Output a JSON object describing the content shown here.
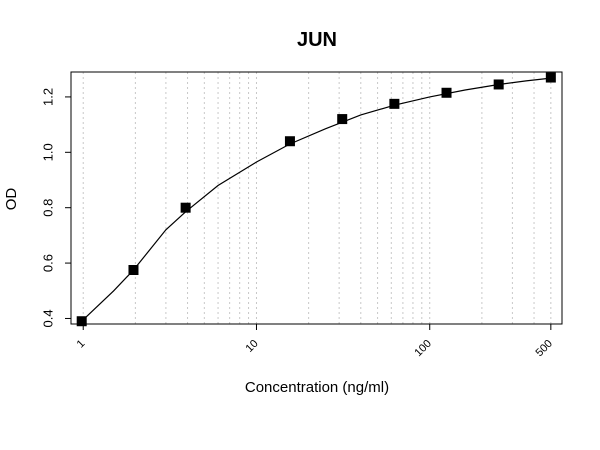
{
  "chart_data": {
    "type": "scatter",
    "title": "JUN",
    "xlabel": "Concentration (ng/ml)",
    "ylabel": "OD",
    "x_scale": "log",
    "xlim": [
      0.85,
      580
    ],
    "ylim": [
      0.38,
      1.29
    ],
    "x_ticks": [
      1,
      10,
      100,
      500
    ],
    "x_tick_labels": [
      "1",
      "10",
      "100",
      "500"
    ],
    "y_ticks": [
      0.4,
      0.6,
      0.8,
      1.0,
      1.2
    ],
    "y_tick_labels": [
      "0.4",
      "0.6",
      "0.8",
      "1.0",
      "1.2"
    ],
    "grid": "vertical, dotted, at 1-9 x each decade",
    "marker": "square",
    "series": [
      {
        "points": [
          {
            "x": 0.98,
            "y": 0.39
          },
          {
            "x": 1.95,
            "y": 0.575
          },
          {
            "x": 3.9,
            "y": 0.8
          },
          {
            "x": 15.6,
            "y": 1.04
          },
          {
            "x": 31.25,
            "y": 1.12
          },
          {
            "x": 62.5,
            "y": 1.175
          },
          {
            "x": 125,
            "y": 1.215
          },
          {
            "x": 250,
            "y": 1.245
          },
          {
            "x": 500,
            "y": 1.27
          }
        ]
      }
    ],
    "fit_curve": [
      {
        "x": 0.98,
        "y": 0.39
      },
      {
        "x": 1.5,
        "y": 0.5
      },
      {
        "x": 1.95,
        "y": 0.575
      },
      {
        "x": 3,
        "y": 0.72
      },
      {
        "x": 3.9,
        "y": 0.785
      },
      {
        "x": 6,
        "y": 0.88
      },
      {
        "x": 10,
        "y": 0.965
      },
      {
        "x": 15.6,
        "y": 1.03
      },
      {
        "x": 25,
        "y": 1.085
      },
      {
        "x": 40,
        "y": 1.135
      },
      {
        "x": 62.5,
        "y": 1.17
      },
      {
        "x": 100,
        "y": 1.2
      },
      {
        "x": 160,
        "y": 1.225
      },
      {
        "x": 250,
        "y": 1.245
      },
      {
        "x": 360,
        "y": 1.258
      },
      {
        "x": 500,
        "y": 1.268
      }
    ]
  }
}
